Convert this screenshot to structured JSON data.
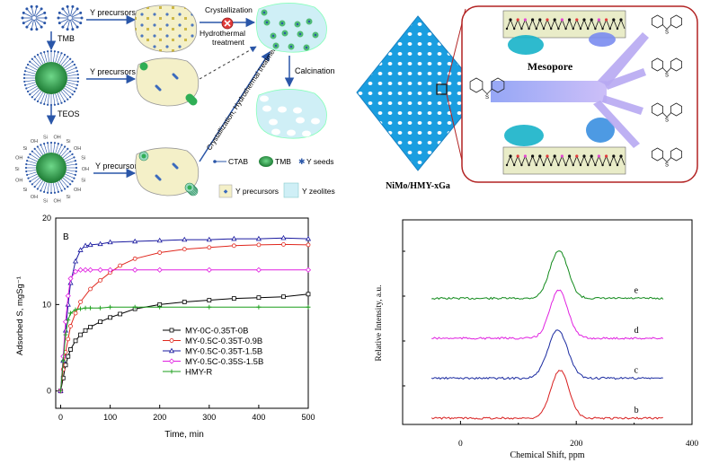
{
  "colors": {
    "green_dark": "#1f8f3a",
    "green_light": "#4fc86a",
    "blue_arrow": "#2a56a8",
    "panel_fill": "#f4f0c8",
    "zeolite_fill": "#cfeff6",
    "pore_blue": "#1aa0e0",
    "pore_purple": "#9c8cf0",
    "frame_red": "#b22222",
    "series_colors": [
      "#000000",
      "#e0281e",
      "#1a1aa0",
      "#e020e0",
      "#1a9e1a"
    ],
    "nmr_colors": [
      "#128a1c",
      "#e020e0",
      "#1a2aa0",
      "#d81e1e"
    ]
  },
  "scheme": {
    "labels": {
      "tmb": "TMB",
      "teos": "TEOS",
      "y_prec_1": "Y precursors",
      "y_prec_2": "Y precursors",
      "y_prec_3": "Y precursors",
      "crystallization": "Crystallization",
      "hydrothermal": "Hydrothermal",
      "treatment": "treatment",
      "diag_text": "Crystallization, Hydrothermal treatment",
      "calcination": "Calcination"
    },
    "legend": {
      "ctab": "CTAB",
      "tmb": "TMB",
      "y_seeds": "Y seeds",
      "y_precursors": "Y precursors",
      "y_zeolites": "Y zeolites"
    },
    "icons": [
      "micelle-icon",
      "tmb-sphere-icon",
      "silica-coated-sphere-icon",
      "cancel-x-icon"
    ]
  },
  "mesopore": {
    "catalyst_label": "NiMo/HMY-xGa",
    "pore_label": "Mesopore",
    "molecule_atom": "S"
  },
  "chart_data": [
    {
      "type": "line",
      "panel_label": "B",
      "title": "",
      "xlabel": "Time, min",
      "ylabel": "Adsorbed S, mgSg⁻¹",
      "xlim": [
        -10,
        500
      ],
      "ylim": [
        -2,
        20
      ],
      "x_ticks": [
        "0",
        "100",
        "200",
        "300",
        "400",
        "500"
      ],
      "y_ticks": [
        "0",
        "10",
        "20"
      ],
      "legend": "bottom-center",
      "series": [
        {
          "name": "MY-0C-0.35T-0B",
          "marker": "square",
          "x": [
            0,
            5,
            10,
            15,
            20,
            30,
            40,
            50,
            60,
            80,
            100,
            120,
            150,
            200,
            250,
            300,
            350,
            400,
            450,
            500
          ],
          "y": [
            0,
            1.5,
            3.0,
            4.0,
            4.8,
            5.8,
            6.5,
            7.0,
            7.4,
            8.0,
            8.5,
            8.9,
            9.5,
            10.0,
            10.3,
            10.5,
            10.7,
            10.8,
            10.9,
            11.2
          ]
        },
        {
          "name": "MY-0.5C-0.35T-0.9B",
          "marker": "circle",
          "x": [
            0,
            5,
            10,
            15,
            20,
            30,
            40,
            60,
            80,
            100,
            120,
            150,
            200,
            250,
            300,
            350,
            400,
            450,
            500
          ],
          "y": [
            0,
            2.5,
            4.5,
            6.0,
            7.5,
            9.0,
            10.3,
            11.8,
            12.8,
            13.7,
            14.5,
            15.3,
            16.0,
            16.4,
            16.6,
            16.8,
            16.9,
            16.95,
            16.9
          ]
        },
        {
          "name": "MY-0.5C-0.35T-1.5B",
          "marker": "triangle",
          "x": [
            0,
            5,
            10,
            15,
            20,
            30,
            40,
            50,
            60,
            80,
            100,
            150,
            200,
            250,
            300,
            350,
            400,
            450,
            500
          ],
          "y": [
            0,
            3.5,
            7.0,
            10.0,
            12.5,
            15.0,
            16.3,
            16.8,
            16.9,
            17.0,
            17.2,
            17.3,
            17.4,
            17.5,
            17.5,
            17.6,
            17.6,
            17.7,
            17.6
          ]
        },
        {
          "name": "MY-0.5C-0.35S-1.5B",
          "marker": "diamond",
          "x": [
            0,
            5,
            10,
            15,
            20,
            30,
            40,
            50,
            60,
            80,
            100,
            150,
            200,
            300,
            400,
            500
          ],
          "y": [
            0,
            4.0,
            8.0,
            11.0,
            13.0,
            13.8,
            14.0,
            14.0,
            14.0,
            14.0,
            14.0,
            14.0,
            14.0,
            14.0,
            14.0,
            14.0
          ]
        },
        {
          "name": "HMY-R",
          "marker": "plus",
          "x": [
            0,
            5,
            10,
            15,
            20,
            30,
            40,
            50,
            60,
            80,
            100,
            150,
            200,
            300,
            400,
            500
          ],
          "y": [
            0,
            3.5,
            6.5,
            8.2,
            9.0,
            9.4,
            9.5,
            9.6,
            9.6,
            9.6,
            9.7,
            9.7,
            9.7,
            9.7,
            9.7,
            9.7
          ]
        }
      ]
    },
    {
      "type": "line",
      "title": "",
      "xlabel": "Chemical Shift, ppm",
      "ylabel": "Relative Intensity, a.u.",
      "xlim": [
        -100,
        400
      ],
      "x_ticks": [
        "0",
        "200",
        "400"
      ],
      "legend": "inline",
      "series": [
        {
          "name": "e",
          "peak_ppm": 170,
          "offset": 3,
          "height": 1.6,
          "width_ppm": 22
        },
        {
          "name": "d",
          "peak_ppm": 170,
          "offset": 2,
          "height": 1.6,
          "width_ppm": 22
        },
        {
          "name": "c",
          "peak_ppm": 168,
          "offset": 1,
          "height": 1.6,
          "width_ppm": 24
        },
        {
          "name": "b",
          "peak_ppm": 172,
          "offset": 0,
          "height": 1.6,
          "width_ppm": 22
        }
      ]
    }
  ]
}
